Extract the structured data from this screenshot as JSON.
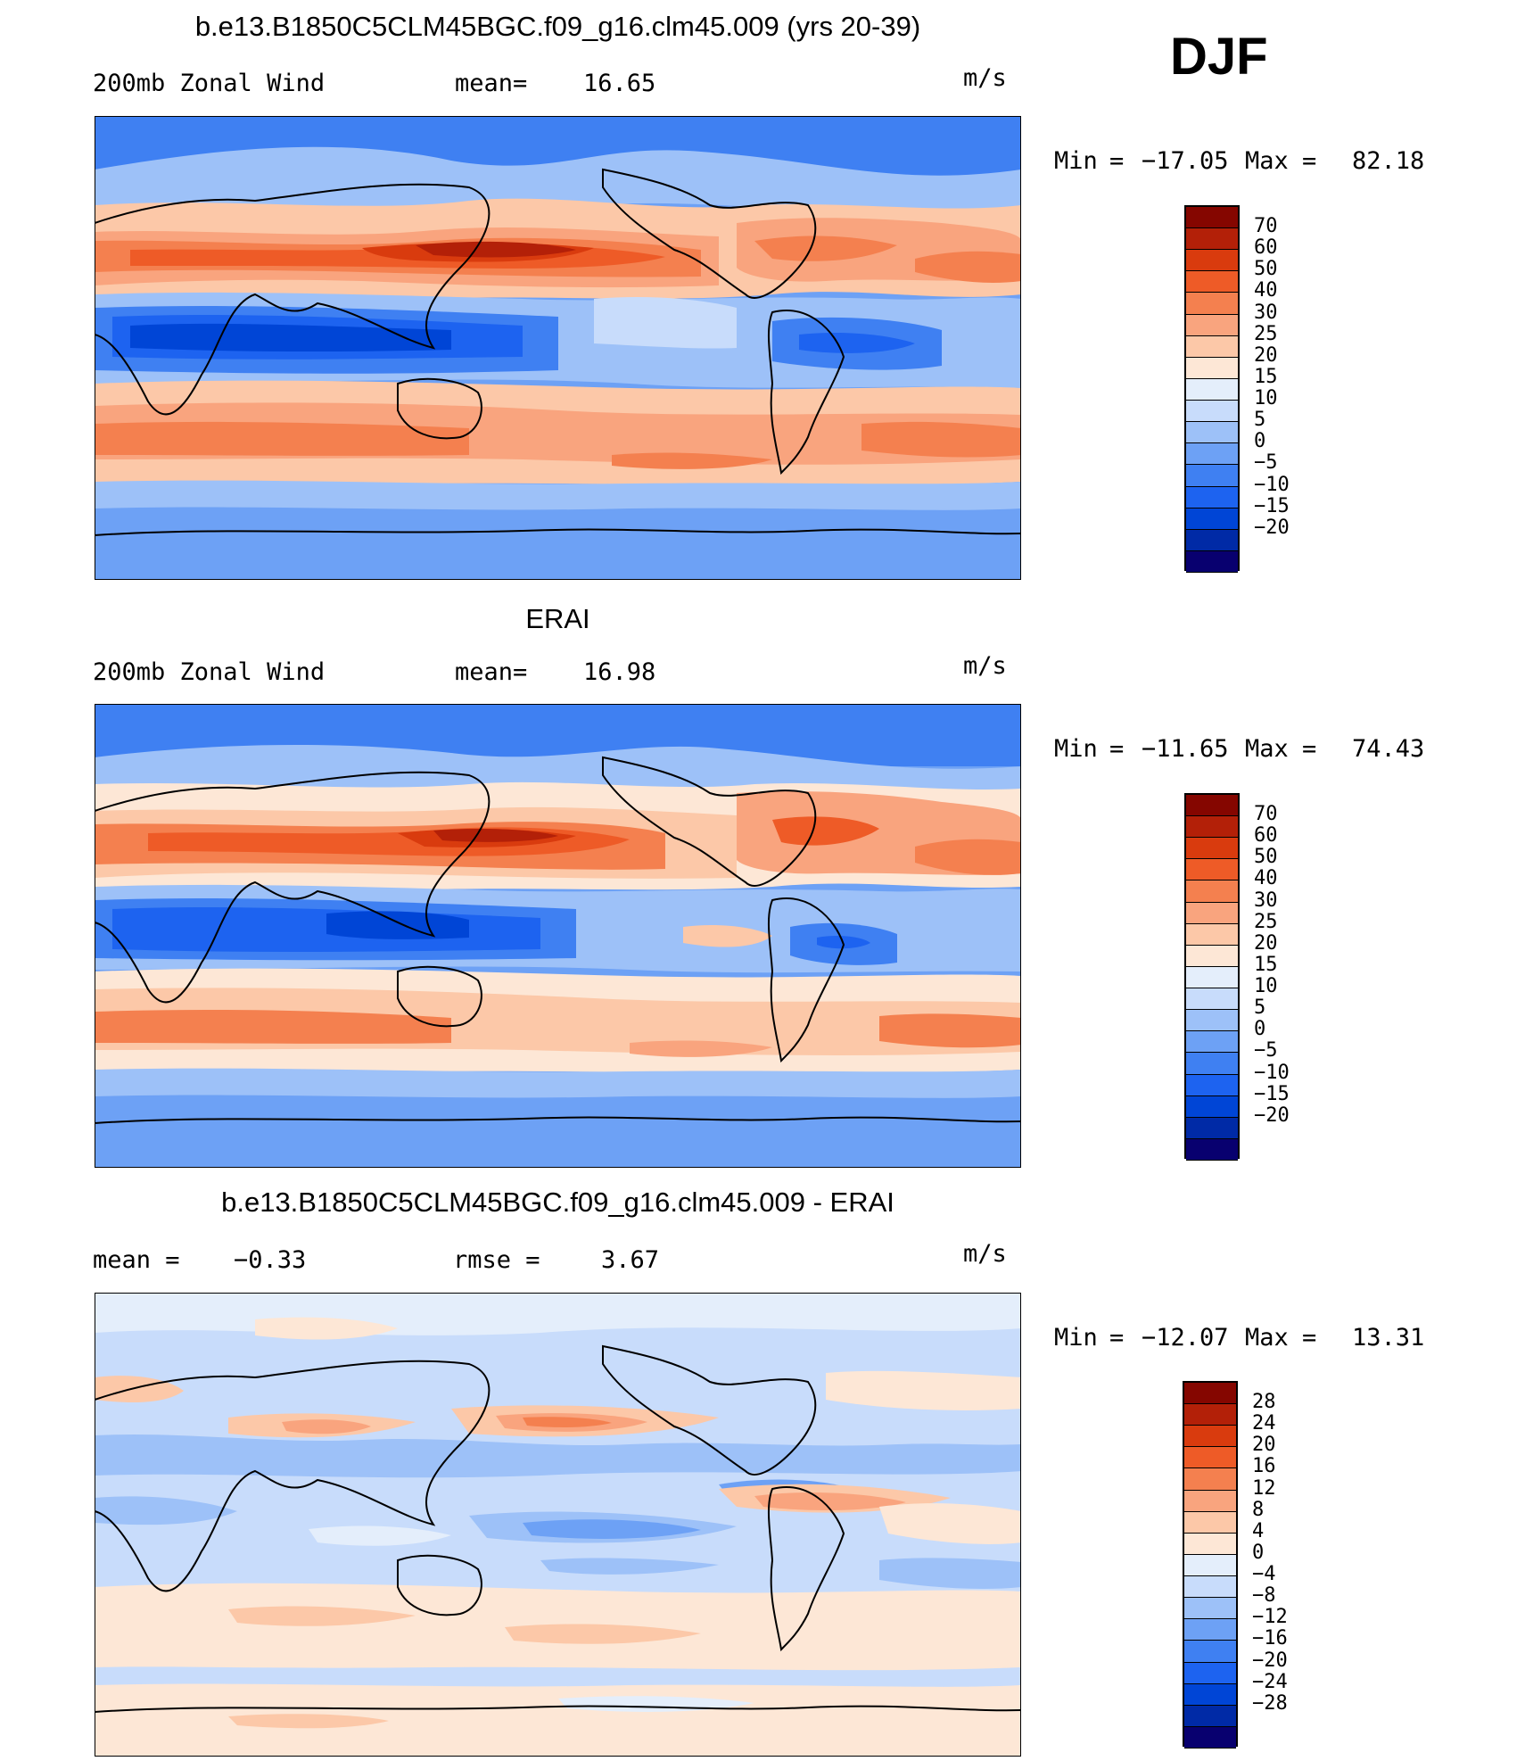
{
  "season": "DJF",
  "palette_abs": [
    "#08006f",
    "#002aa6",
    "#0045d6",
    "#1d63f0",
    "#3f80f2",
    "#6da1f5",
    "#9dc1f8",
    "#c8dcfb",
    "#e4eefb",
    "#fde7d6",
    "#fcc8a8",
    "#f9a47e",
    "#f4804f",
    "#ee5b27",
    "#d93b0e",
    "#b32008",
    "#850600"
  ],
  "palette_diff": [
    "#08006f",
    "#002aa6",
    "#0045d6",
    "#1d63f0",
    "#3f80f2",
    "#6da1f5",
    "#9dc1f8",
    "#c8dcfb",
    "#e4eefb",
    "#fde7d6",
    "#fcc8a8",
    "#f9a47e",
    "#f4804f",
    "#ee5b27",
    "#d93b0e",
    "#b32008",
    "#850600"
  ],
  "panels": [
    {
      "title": "b.e13.B1850C5CLM45BGC.f09_g16.clm45.009 (yrs 20-39)",
      "left_label": "200mb Zonal Wind",
      "mid_label": "mean=",
      "mid_value": "16.65",
      "units": "m/s",
      "min_label": "Min",
      "min_value": "−17.05",
      "max_label": "Max",
      "max_value": "82.18",
      "colorbar": [
        "70",
        "60",
        "50",
        "40",
        "30",
        "25",
        "20",
        "15",
        "10",
        "5",
        "0",
        "−5",
        "−10",
        "−15",
        "−20"
      ]
    },
    {
      "title": "ERAI",
      "left_label": "200mb Zonal Wind",
      "mid_label": "mean=",
      "mid_value": "16.98",
      "units": "m/s",
      "min_label": "Min",
      "min_value": "−11.65",
      "max_label": "Max",
      "max_value": "74.43",
      "colorbar": [
        "70",
        "60",
        "50",
        "40",
        "30",
        "25",
        "20",
        "15",
        "10",
        "5",
        "0",
        "−5",
        "−10",
        "−15",
        "−20"
      ]
    },
    {
      "title": "b.e13.B1850C5CLM45BGC.f09_g16.clm45.009 - ERAI",
      "left_label": "mean =",
      "left_value": "−0.33",
      "mid_label": "rmse =",
      "mid_value": "3.67",
      "units": "m/s",
      "min_label": "Min",
      "min_value": "−12.07",
      "max_label": "Max",
      "max_value": "13.31",
      "colorbar": [
        "28",
        "24",
        "20",
        "16",
        "12",
        "8",
        "4",
        "0",
        "−4",
        "−8",
        "−12",
        "−16",
        "−20",
        "−24",
        "−28"
      ]
    }
  ]
}
